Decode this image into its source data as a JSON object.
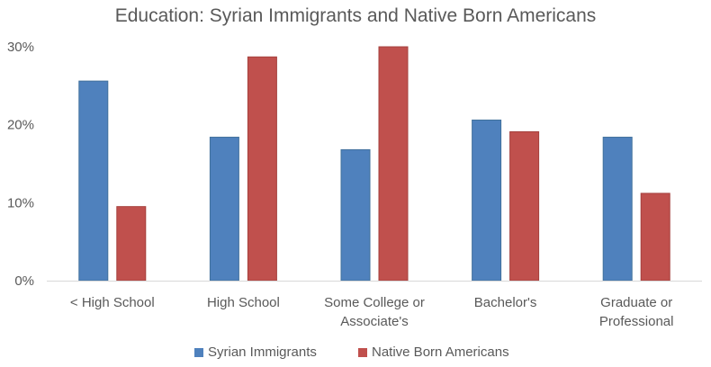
{
  "chart_data": {
    "type": "bar",
    "title": "Education: Syrian Immigrants and Native Born Americans",
    "xlabel": "",
    "ylabel": "",
    "ylim": [
      0,
      30
    ],
    "y_ticks": [
      0,
      10,
      20,
      30
    ],
    "y_tick_labels": [
      "0%",
      "10%",
      "20%",
      "30%"
    ],
    "grid": false,
    "legend_position": "bottom",
    "categories": [
      [
        "< High School"
      ],
      [
        "High School"
      ],
      [
        "Some College or",
        "Associate's"
      ],
      [
        "Bachelor's"
      ],
      [
        "Graduate or",
        "Professional"
      ]
    ],
    "series": [
      {
        "name": "Syrian Immigrants",
        "color": "#4f81bd",
        "values": [
          25.6,
          18.4,
          16.8,
          20.6,
          18.4
        ]
      },
      {
        "name": "Native Born Americans",
        "color": "#c0504d",
        "values": [
          9.5,
          28.7,
          30.0,
          19.1,
          11.2
        ]
      }
    ]
  }
}
